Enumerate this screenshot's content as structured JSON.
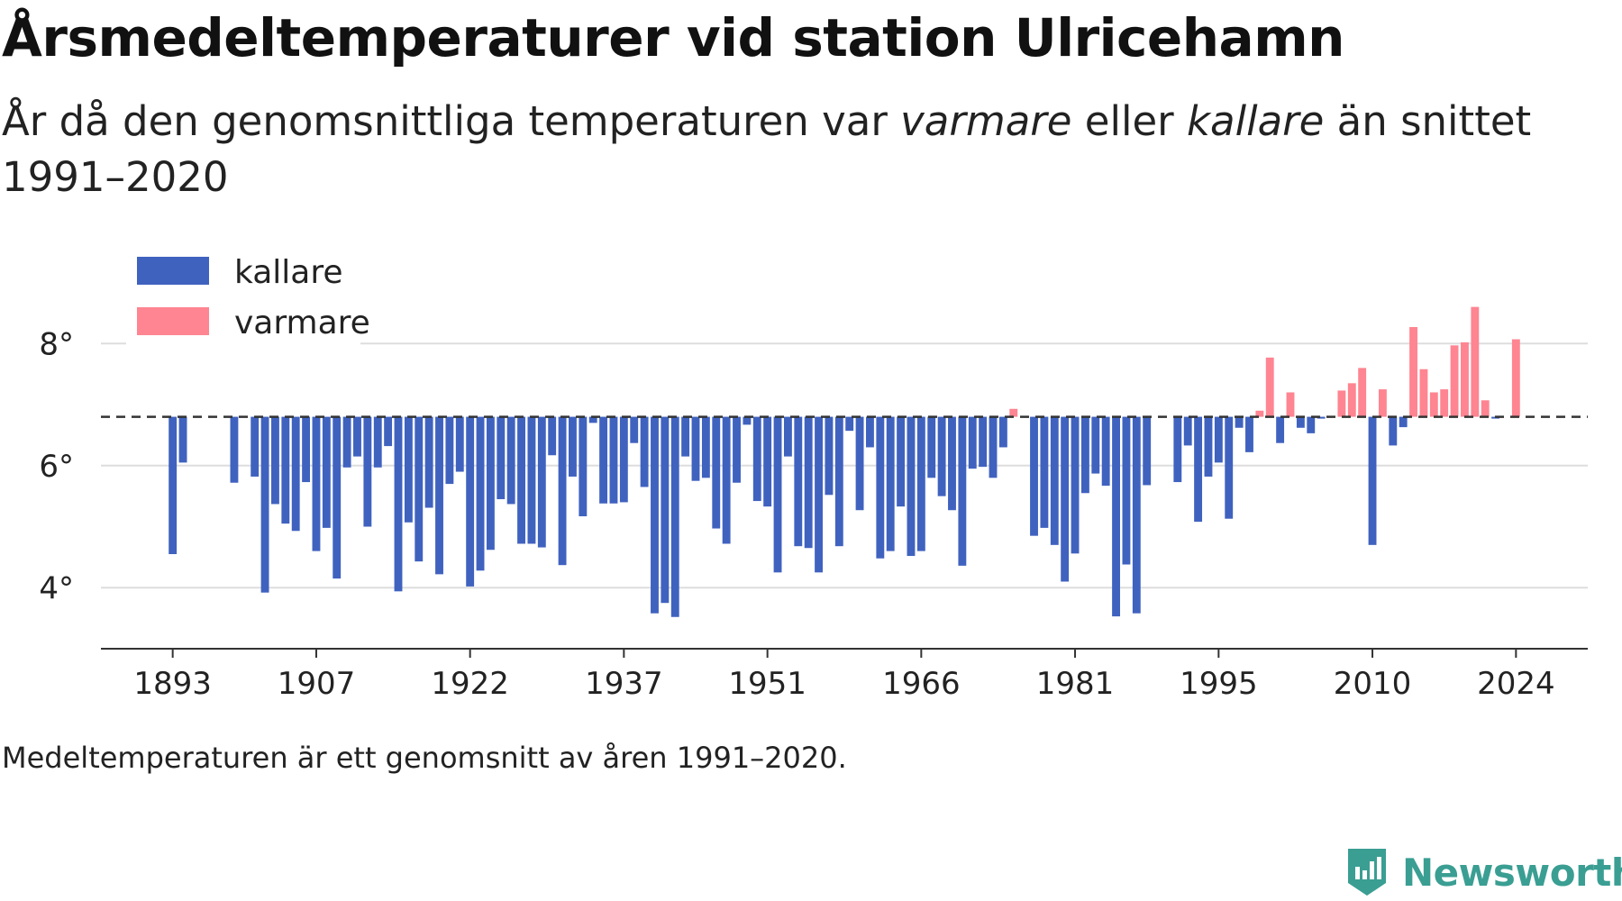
{
  "header": {
    "title": "Årsmedeltemperaturer vid station Ulricehamn",
    "subtitle_pre": "År då den genomsnittliga temperaturen var ",
    "subtitle_warm": "varmare",
    "subtitle_mid": " eller ",
    "subtitle_cold": "kallare",
    "subtitle_post": " än snittet 1991–2020"
  },
  "footnote": "Medeltemperaturen är ett genomsnitt av åren 1991–2020.",
  "brand": {
    "name": "Newsworthy",
    "icon": "newsworthy-logo-icon"
  },
  "colors": {
    "colder": "#4062bf",
    "warmer": "#fe8591",
    "grid": "#dddddd",
    "axis": "#333333",
    "reference": "#333333"
  },
  "chart_data": {
    "type": "bar",
    "title": "Årsmedeltemperaturer vid station Ulricehamn",
    "xlabel": "",
    "ylabel": "",
    "baseline": 6.8,
    "baseline_style": "dashed",
    "ylim": [
      3.0,
      9.2
    ],
    "yticks": [
      4,
      6,
      8
    ],
    "ytick_labels": [
      "4°",
      "6°",
      "8°"
    ],
    "xlim": [
      1886,
      2031
    ],
    "xticks": [
      1893,
      1907,
      1922,
      1937,
      1951,
      1966,
      1981,
      1995,
      2010,
      2024
    ],
    "grid": "horizontal",
    "legend": {
      "position": "top-left",
      "entries": [
        {
          "key": "colder",
          "label": "kallare"
        },
        {
          "key": "warmer",
          "label": "varmare"
        }
      ]
    },
    "x": [
      1893,
      1894,
      1899,
      1901,
      1902,
      1903,
      1904,
      1905,
      1906,
      1907,
      1908,
      1909,
      1910,
      1911,
      1912,
      1913,
      1914,
      1915,
      1916,
      1917,
      1918,
      1919,
      1920,
      1921,
      1922,
      1923,
      1924,
      1925,
      1926,
      1927,
      1928,
      1929,
      1930,
      1931,
      1932,
      1933,
      1934,
      1935,
      1936,
      1937,
      1938,
      1939,
      1940,
      1941,
      1942,
      1943,
      1944,
      1945,
      1946,
      1947,
      1948,
      1949,
      1950,
      1951,
      1952,
      1953,
      1954,
      1955,
      1956,
      1957,
      1958,
      1959,
      1960,
      1961,
      1962,
      1963,
      1964,
      1965,
      1966,
      1967,
      1968,
      1969,
      1970,
      1971,
      1972,
      1973,
      1974,
      1975,
      1977,
      1978,
      1979,
      1980,
      1981,
      1982,
      1983,
      1984,
      1985,
      1986,
      1987,
      1988,
      1991,
      1992,
      1993,
      1994,
      1995,
      1996,
      1997,
      1998,
      1999,
      2000,
      2001,
      2002,
      2003,
      2004,
      2005,
      2007,
      2008,
      2009,
      2010,
      2011,
      2012,
      2013,
      2014,
      2015,
      2016,
      2017,
      2018,
      2019,
      2020,
      2021,
      2022,
      2024
    ],
    "values": [
      4.55,
      6.05,
      5.72,
      5.82,
      3.92,
      5.37,
      5.05,
      4.93,
      5.73,
      4.6,
      4.98,
      4.15,
      5.97,
      6.15,
      5.0,
      5.97,
      6.32,
      3.94,
      5.07,
      4.43,
      5.31,
      4.22,
      5.7,
      5.9,
      4.02,
      4.28,
      4.62,
      5.45,
      5.37,
      4.72,
      4.72,
      4.66,
      6.17,
      4.37,
      5.82,
      5.17,
      6.7,
      5.38,
      5.38,
      5.4,
      6.37,
      5.65,
      3.58,
      3.75,
      3.52,
      6.15,
      5.75,
      5.8,
      4.97,
      4.72,
      5.72,
      6.67,
      5.42,
      5.33,
      4.25,
      6.15,
      4.68,
      4.65,
      4.25,
      5.52,
      4.68,
      6.57,
      5.27,
      6.3,
      4.48,
      4.6,
      5.33,
      4.52,
      4.6,
      5.8,
      5.5,
      5.27,
      4.36,
      5.95,
      5.98,
      5.8,
      6.3,
      6.93,
      4.85,
      4.98,
      4.7,
      4.1,
      4.56,
      5.55,
      5.87,
      5.67,
      3.53,
      4.38,
      3.58,
      5.68,
      5.73,
      6.33,
      5.08,
      5.82,
      6.05,
      5.13,
      6.62,
      6.22,
      6.9,
      7.77,
      6.37,
      7.2,
      6.62,
      6.53,
      6.77,
      7.23,
      7.35,
      7.6,
      4.7,
      7.25,
      6.33,
      6.63,
      8.27,
      7.58,
      7.2,
      7.25,
      7.97,
      8.02,
      8.6,
      7.07,
      6.77,
      8.07
    ]
  }
}
